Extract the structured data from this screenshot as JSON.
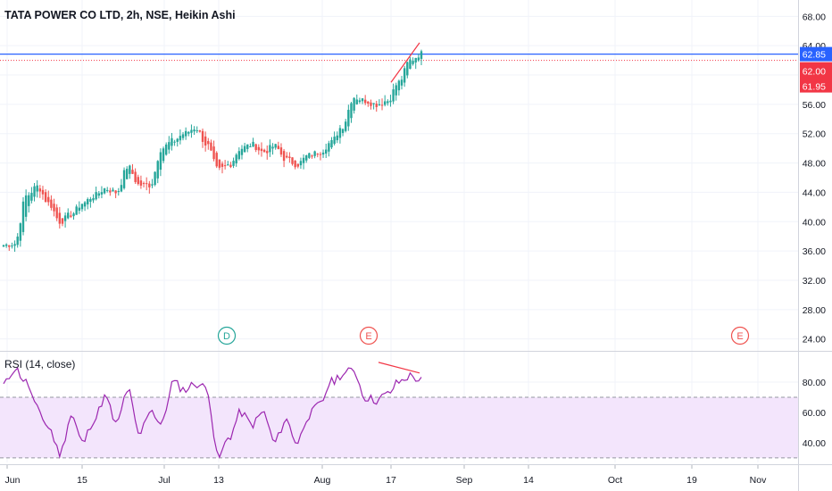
{
  "header": {
    "title": "TATA POWER CO LTD, 2h, NSE, Heikin Ashi"
  },
  "colors": {
    "up": "#26a69a",
    "down": "#ef5350",
    "grid": "#f0f3fa",
    "axis_text": "#131722",
    "blue_line": "#2962ff",
    "red_line": "#f23645",
    "rsi_line": "#9c27b0",
    "rsi_band": "#f3e5fc",
    "event_d": "#26a69a",
    "event_e": "#ef5350"
  },
  "chart_data": [
    {
      "type": "candlestick",
      "title": "TATA POWER CO LTD, 2h, NSE, Heikin Ashi",
      "ylim": [
        22.5,
        69.5
      ],
      "y_ticks": [
        24,
        28,
        32,
        36,
        40,
        44,
        48,
        52,
        56,
        60,
        64,
        68
      ],
      "x_labels": [
        "Jun",
        "15",
        "Jul",
        "13",
        "Aug",
        "17",
        "Sep",
        "14",
        "Oct",
        "19",
        "Nov"
      ],
      "anchors": [
        {
          "label": "Jun",
          "y": 36.8
        },
        {
          "label": "",
          "y": 37.0
        },
        {
          "label": "",
          "y": 43.5
        },
        {
          "label": "",
          "y": 44.8
        },
        {
          "label": "",
          "y": 42.5
        },
        {
          "label": "",
          "y": 40.0
        },
        {
          "label": "15",
          "y": 41.0
        },
        {
          "label": "",
          "y": 42.5
        },
        {
          "label": "",
          "y": 43.5
        },
        {
          "label": "",
          "y": 44.5
        },
        {
          "label": "",
          "y": 44.0
        },
        {
          "label": "",
          "y": 47.5
        },
        {
          "label": "",
          "y": 45.0
        },
        {
          "label": "",
          "y": 45.0
        },
        {
          "label": "",
          "y": 50.0
        },
        {
          "label": "",
          "y": 51.0
        },
        {
          "label": "Jul",
          "y": 52.0
        },
        {
          "label": "",
          "y": 52.8
        },
        {
          "label": "",
          "y": 50.5
        },
        {
          "label": "13",
          "y": 47.0
        },
        {
          "label": "",
          "y": 47.8
        },
        {
          "label": "",
          "y": 50.0
        },
        {
          "label": "",
          "y": 50.5
        },
        {
          "label": "",
          "y": 49.5
        },
        {
          "label": "",
          "y": 50.3
        },
        {
          "label": "",
          "y": 48.5
        },
        {
          "label": "",
          "y": 47.8
        },
        {
          "label": "Aug",
          "y": 49.0
        },
        {
          "label": "",
          "y": 49.5
        },
        {
          "label": "",
          "y": 50.8
        },
        {
          "label": "",
          "y": 53.0
        },
        {
          "label": "",
          "y": 57.0
        },
        {
          "label": "",
          "y": 56.5
        },
        {
          "label": "17",
          "y": 56.0
        },
        {
          "label": "",
          "y": 56.5
        },
        {
          "label": "",
          "y": 59.0
        },
        {
          "label": "",
          "y": 62.0
        },
        {
          "label": "",
          "y": 62.9
        }
      ],
      "h_lines": [
        62.85,
        62.0
      ],
      "price_labels": [
        "64.00",
        "62.85",
        "62.00",
        "61.95"
      ],
      "divergence_line": {
        "from": {
          "x": "17",
          "y": 59.0
        },
        "to": {
          "x": "Aug 20",
          "y": 64.4
        }
      },
      "events": [
        {
          "letter": "D",
          "x": "Jul 7"
        },
        {
          "letter": "E",
          "x": "Aug 13"
        },
        {
          "letter": "E",
          "x": "Oct 26"
        }
      ]
    },
    {
      "type": "line",
      "title": "RSI (14, close)",
      "ylim": [
        27,
        100
      ],
      "y_ticks": [
        40,
        60,
        80
      ],
      "band": [
        30,
        70
      ],
      "anchors": [
        {
          "label": "Jun",
          "y": 78
        },
        {
          "label": "",
          "y": 89
        },
        {
          "label": "",
          "y": 80
        },
        {
          "label": "",
          "y": 62
        },
        {
          "label": "",
          "y": 50
        },
        {
          "label": "",
          "y": 33
        },
        {
          "label": "15",
          "y": 58
        },
        {
          "label": "",
          "y": 40
        },
        {
          "label": "",
          "y": 55
        },
        {
          "label": "",
          "y": 70
        },
        {
          "label": "",
          "y": 52
        },
        {
          "label": "",
          "y": 75
        },
        {
          "label": "",
          "y": 45
        },
        {
          "label": "",
          "y": 62
        },
        {
          "label": "",
          "y": 52
        },
        {
          "label": "",
          "y": 80
        },
        {
          "label": "Jul",
          "y": 75
        },
        {
          "label": "",
          "y": 79
        },
        {
          "label": "",
          "y": 76
        },
        {
          "label": "13",
          "y": 30
        },
        {
          "label": "",
          "y": 44
        },
        {
          "label": "",
          "y": 60
        },
        {
          "label": "",
          "y": 52
        },
        {
          "label": "",
          "y": 60
        },
        {
          "label": "",
          "y": 40
        },
        {
          "label": "",
          "y": 55
        },
        {
          "label": "",
          "y": 40
        },
        {
          "label": "Aug",
          "y": 58
        },
        {
          "label": "",
          "y": 65
        },
        {
          "label": "",
          "y": 80
        },
        {
          "label": "",
          "y": 85
        },
        {
          "label": "",
          "y": 88
        },
        {
          "label": "",
          "y": 70
        },
        {
          "label": "17",
          "y": 68
        },
        {
          "label": "",
          "y": 72
        },
        {
          "label": "",
          "y": 80
        },
        {
          "label": "",
          "y": 84
        },
        {
          "label": "",
          "y": 81
        }
      ],
      "divergence_line": {
        "from": {
          "x": "Aug 13",
          "y": 93
        },
        "to": {
          "x": "Aug 20",
          "y": 86
        }
      }
    }
  ]
}
